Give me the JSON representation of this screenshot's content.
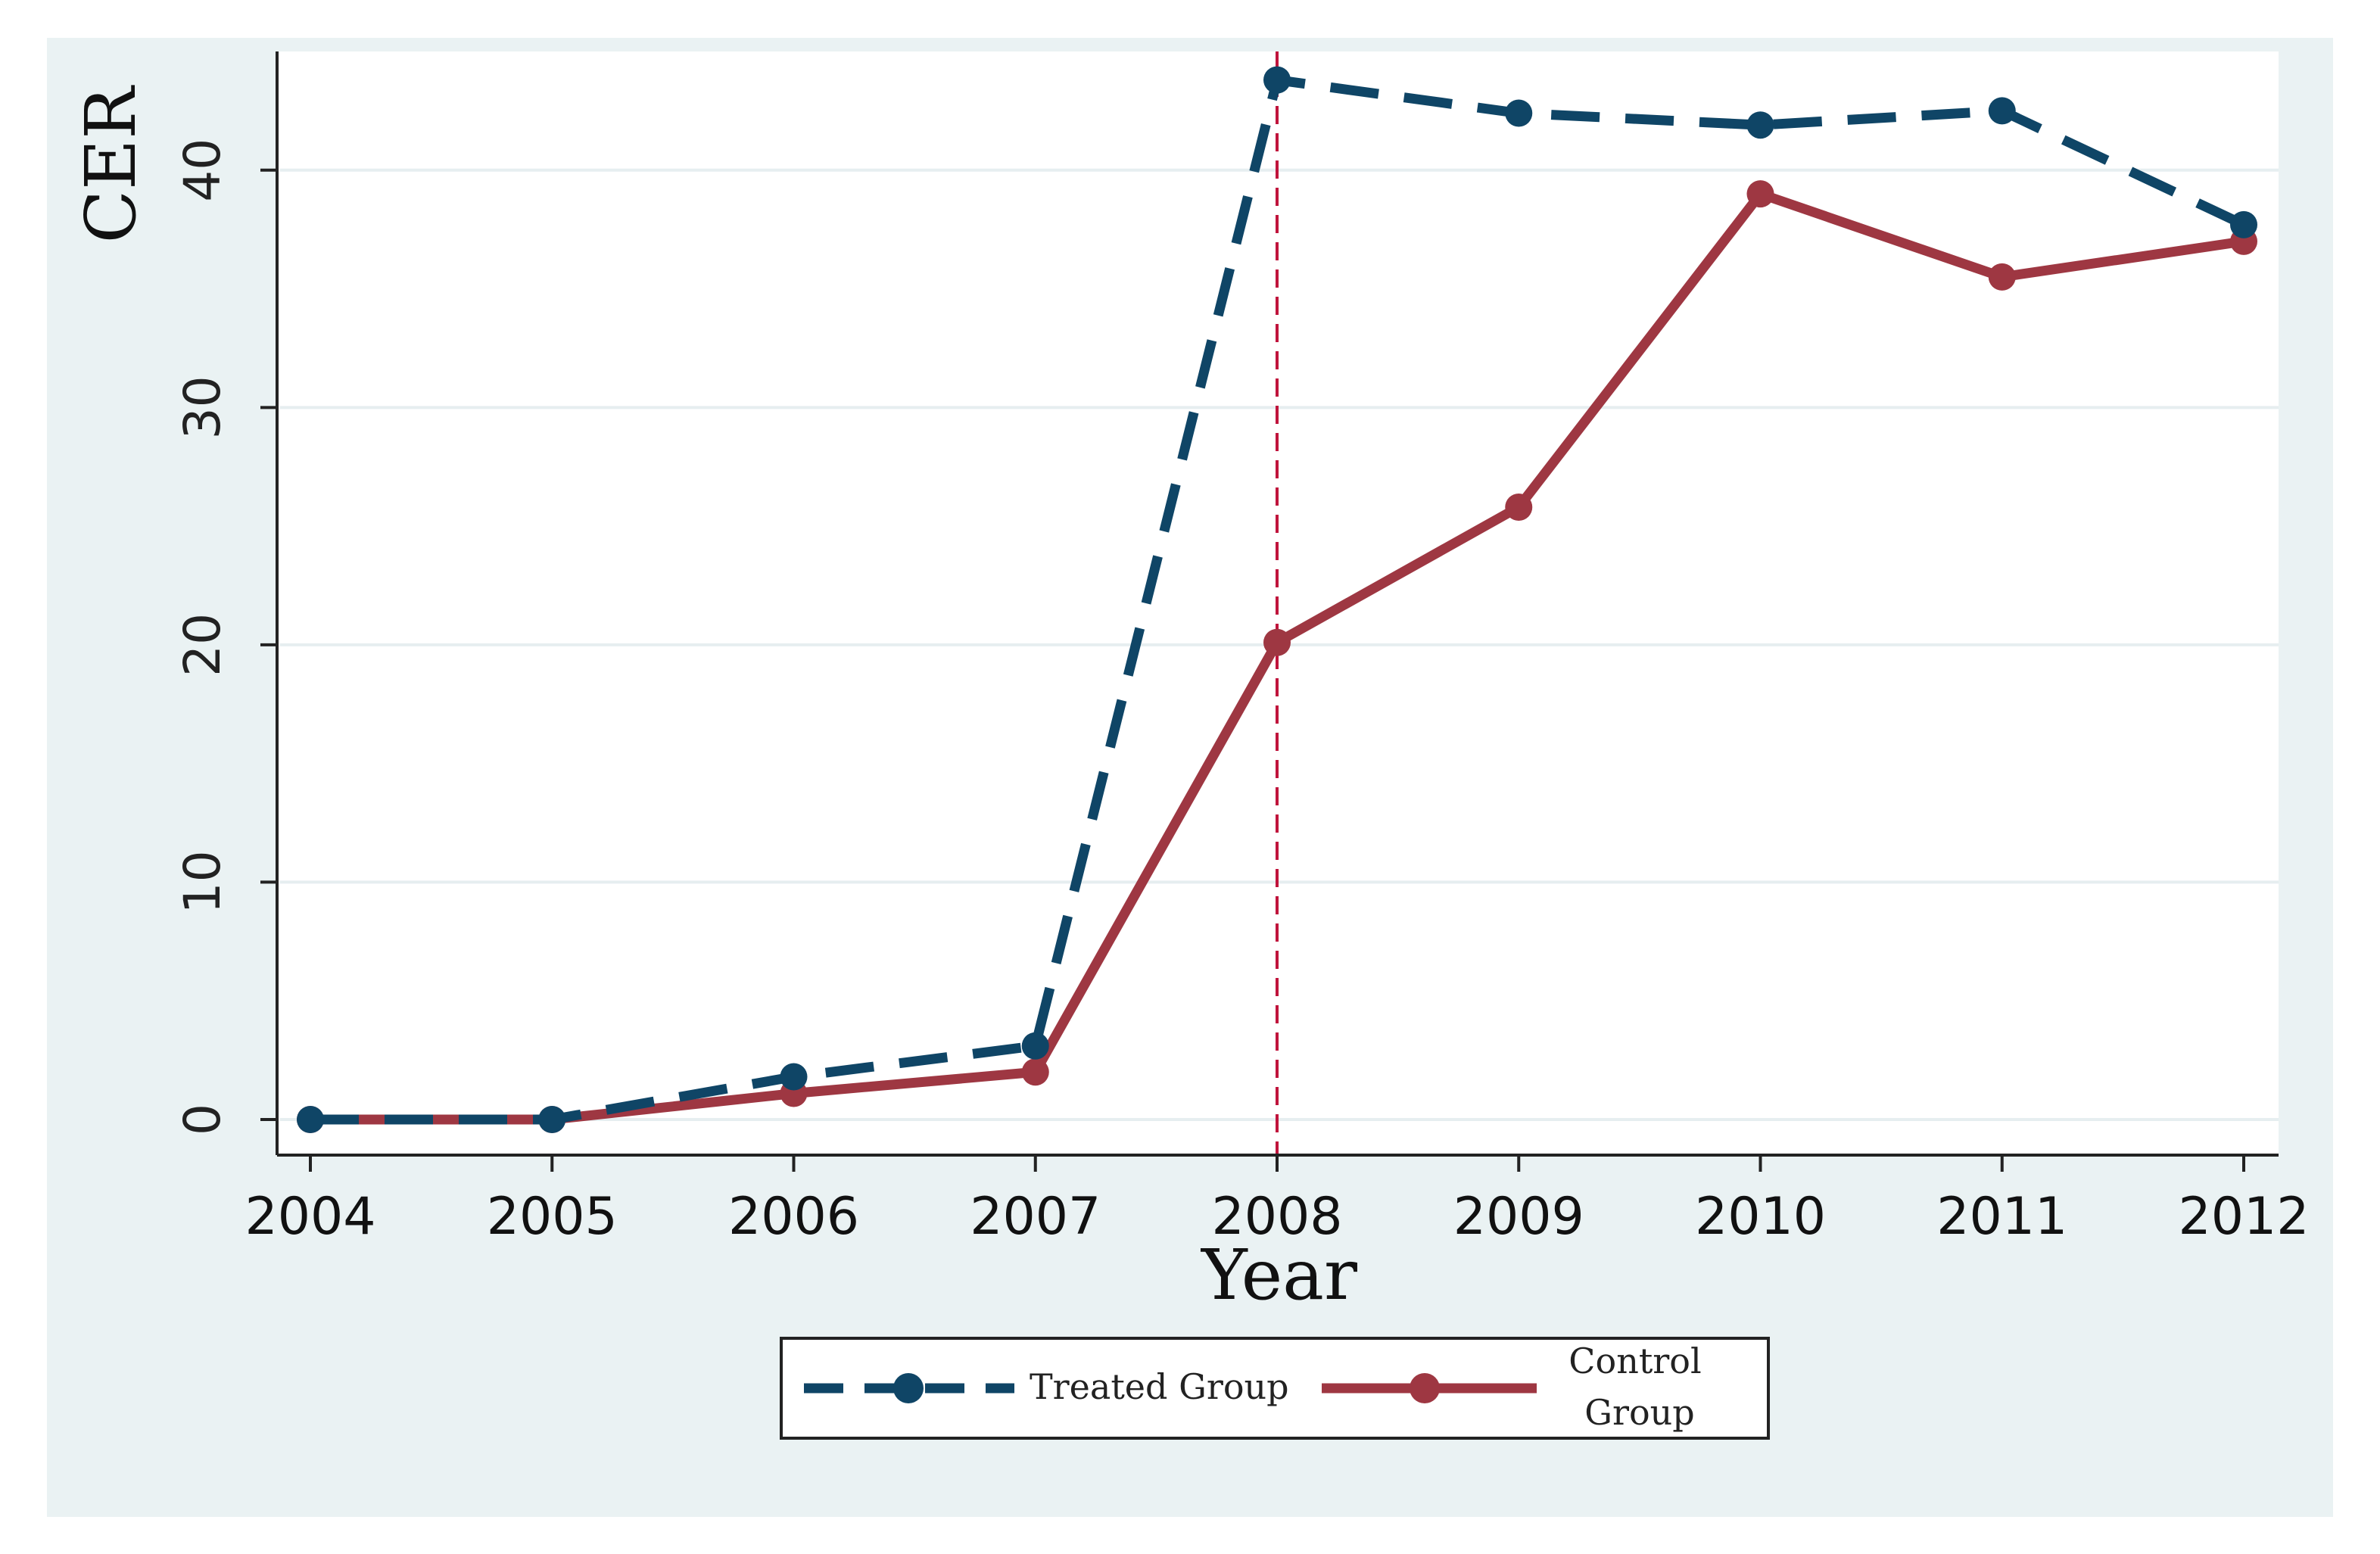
{
  "chart_data": {
    "type": "line",
    "title": "",
    "xlabel": "Year",
    "ylabel": "CER",
    "categories": [
      "2004",
      "2005",
      "2006",
      "2007",
      "2008",
      "2009",
      "2010",
      "2011",
      "2012"
    ],
    "x": [
      2004,
      2005,
      2006,
      2007,
      2008,
      2009,
      2010,
      2011,
      2012
    ],
    "xlim": [
      2004,
      2012
    ],
    "ylim": [
      -1.5,
      45
    ],
    "yticks": [
      0,
      10,
      20,
      30,
      40
    ],
    "ytick_labels": [
      "0",
      "10",
      "20",
      "30",
      "40"
    ],
    "grid": true,
    "reference_line": {
      "x": 2008,
      "color": "#c0143c",
      "style": "dashed"
    },
    "series": [
      {
        "name": "Treated Group",
        "color": "#0f4566",
        "line_style": "dashed",
        "marker": "circle",
        "values": [
          0,
          0,
          1.8,
          3.1,
          43.8,
          42.4,
          41.9,
          42.5,
          37.7
        ]
      },
      {
        "name": "Control Group",
        "color": "#9e3742",
        "line_style": "solid",
        "marker": "circle",
        "values": [
          0,
          0,
          1.1,
          2.0,
          20.1,
          25.8,
          39.0,
          35.5,
          37.0
        ]
      }
    ],
    "legend": {
      "placement": "bottom-center",
      "entries": [
        {
          "label": "Treated Group",
          "lines": [
            "Treated Group"
          ]
        },
        {
          "label": "Control Group",
          "lines": [
            "Control",
            "Group"
          ]
        }
      ]
    }
  }
}
